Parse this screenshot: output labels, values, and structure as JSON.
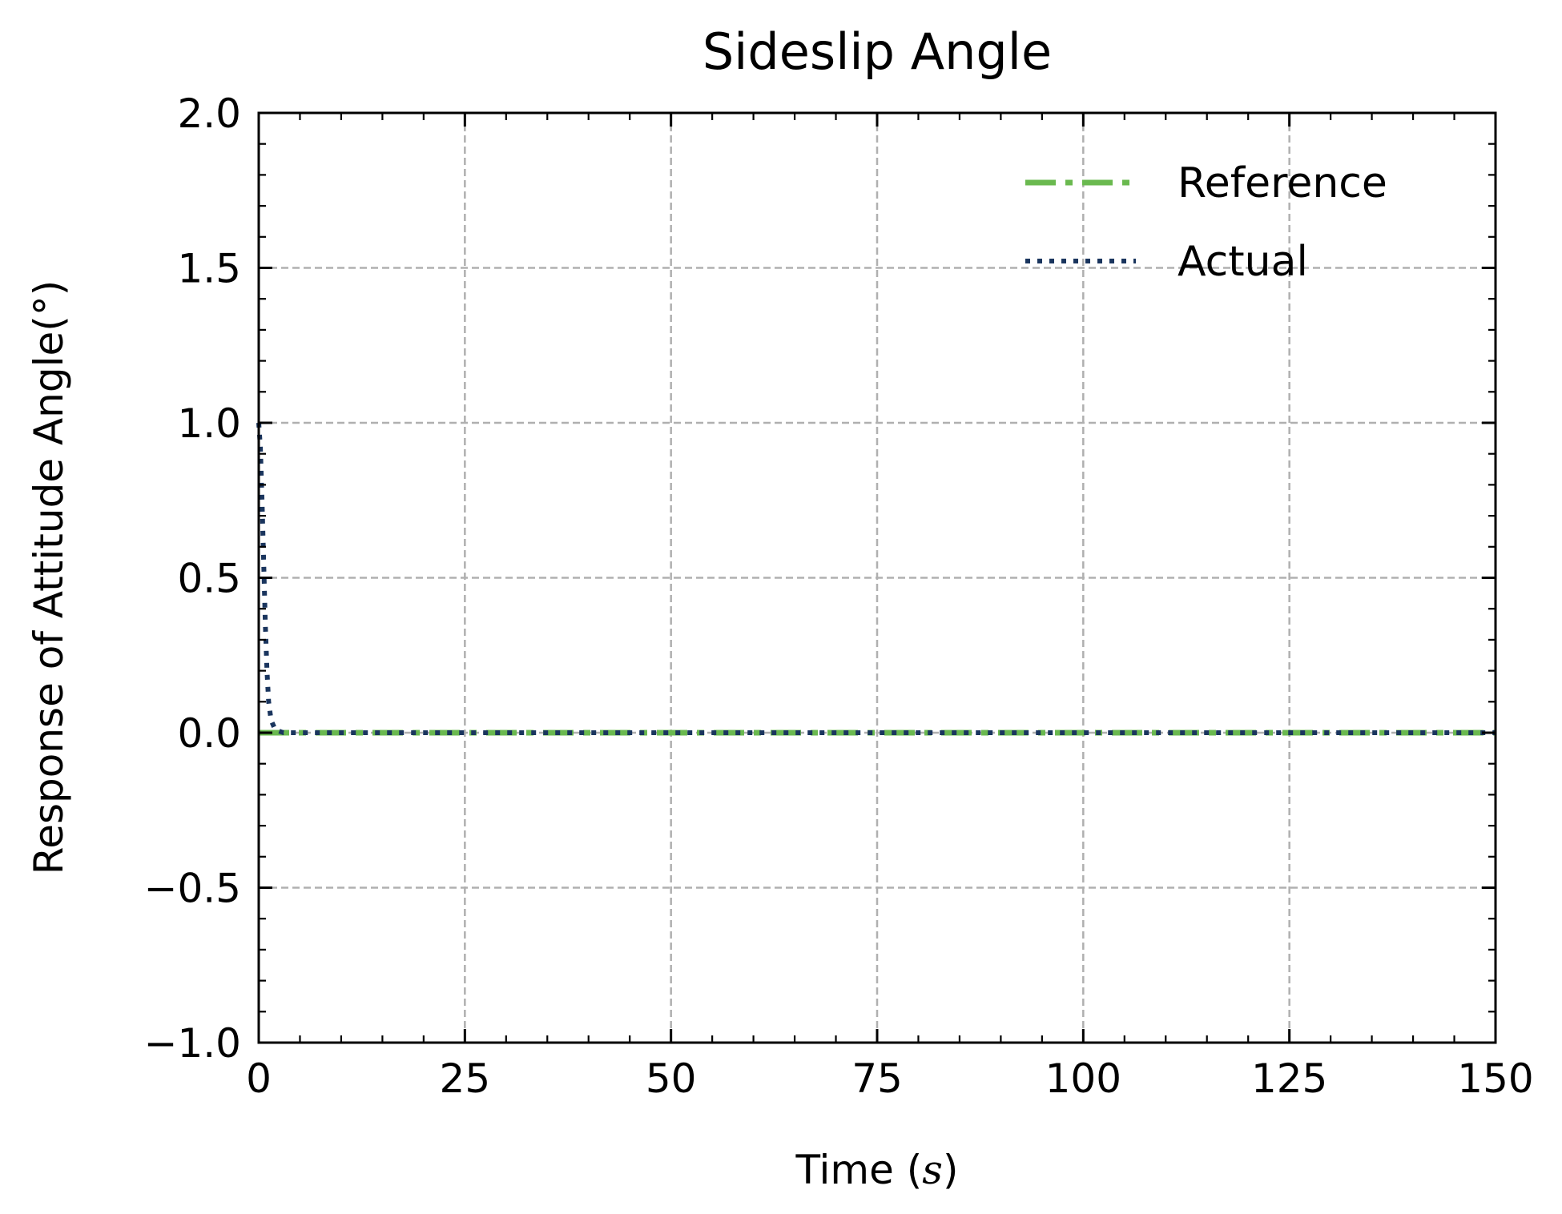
{
  "chart_data": {
    "type": "line",
    "title": "Sideslip Angle",
    "xlabel_prefix": "Time (",
    "xlabel_var": "s",
    "xlabel_suffix": ")",
    "ylabel": "Response of Attitude Angle(°)",
    "xlim": [
      0,
      150
    ],
    "ylim": [
      -1.0,
      2.0
    ],
    "xticks": [
      0,
      25,
      50,
      75,
      100,
      125,
      150
    ],
    "xtick_labels": [
      "0",
      "25",
      "50",
      "75",
      "100",
      "125",
      "150"
    ],
    "yticks": [
      -1.0,
      -0.5,
      0.0,
      0.5,
      1.0,
      1.5,
      2.0
    ],
    "ytick_labels": [
      "−1.0",
      "−0.5",
      "0.0",
      "0.5",
      "1.0",
      "1.5",
      "2.0"
    ],
    "x_minor_step": 5,
    "y_minor_step": 0.1,
    "grid": true,
    "legend_position": "top-right",
    "series": [
      {
        "name": "Reference",
        "color": "#6ab94f",
        "line_style": "dash-dot",
        "x": [
          0,
          150
        ],
        "y": [
          0,
          0
        ]
      },
      {
        "name": "Actual",
        "color": "#1a355e",
        "line_style": "dotted",
        "x": [
          0,
          0.2,
          0.4,
          0.6,
          0.8,
          1.0,
          1.2,
          1.5,
          2.0,
          3.0,
          5.0,
          10,
          20,
          50,
          100,
          150
        ],
        "y": [
          1.0,
          0.92,
          0.75,
          0.55,
          0.35,
          0.2,
          0.1,
          0.04,
          0.01,
          0.0,
          0.0,
          0.0,
          0.0,
          0.0,
          0.0,
          0.0
        ]
      }
    ]
  }
}
